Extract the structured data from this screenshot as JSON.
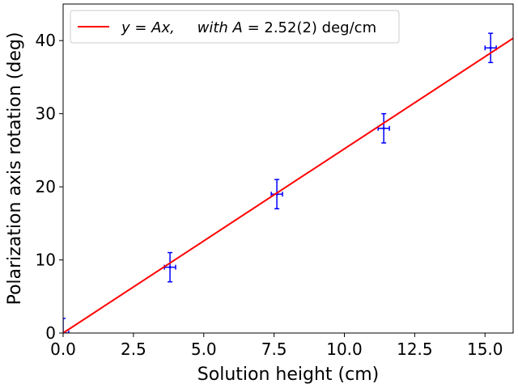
{
  "chart_data": {
    "type": "scatter",
    "xlabel": "Solution height (cm)",
    "ylabel": "Polarization axis rotation (deg)",
    "xlim": [
      0,
      16
    ],
    "ylim": [
      0,
      45
    ],
    "xticks": [
      0.0,
      2.5,
      5.0,
      7.5,
      10.0,
      12.5,
      15.0
    ],
    "xtick_labels": [
      "0.0",
      "2.5",
      "5.0",
      "7.5",
      "10.0",
      "12.5",
      "15.0"
    ],
    "yticks": [
      0,
      10,
      20,
      30,
      40
    ],
    "ytick_labels": [
      "0",
      "10",
      "20",
      "30",
      "40"
    ],
    "grid": false,
    "legend_position": "top-left",
    "series": [
      {
        "kind": "errorbar",
        "color": "#0000ff",
        "points": [
          {
            "x": 0.0,
            "y": 0,
            "xerr": 0.2,
            "yerr": 2
          },
          {
            "x": 3.8,
            "y": 9,
            "xerr": 0.2,
            "yerr": 2
          },
          {
            "x": 7.6,
            "y": 19,
            "xerr": 0.2,
            "yerr": 2
          },
          {
            "x": 11.4,
            "y": 28,
            "xerr": 0.2,
            "yerr": 2
          },
          {
            "x": 15.2,
            "y": 39,
            "xerr": 0.2,
            "yerr": 2
          }
        ]
      },
      {
        "kind": "line",
        "color": "#ff0000",
        "slope": 2.52,
        "x": [
          0,
          16
        ],
        "y": [
          0,
          40.32
        ]
      }
    ],
    "legend": {
      "label_math": "y = Ax,",
      "label_with": "with A",
      "label_value": " = 2.52(2) deg/cm"
    }
  }
}
